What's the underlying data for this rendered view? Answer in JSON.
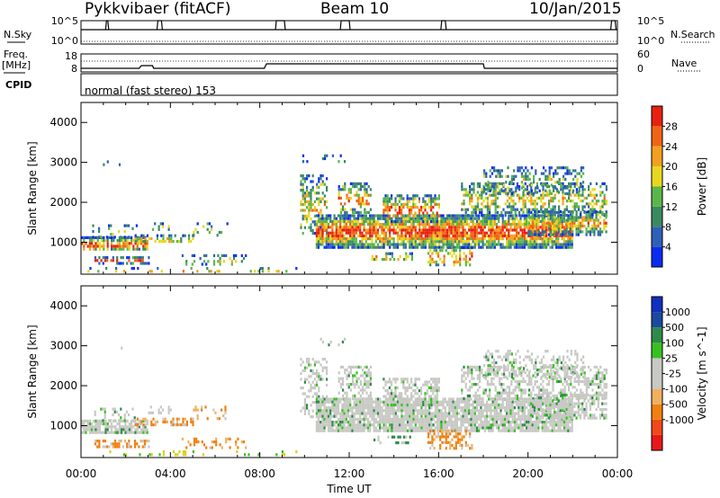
{
  "header": {
    "title": "Pykkvibaer (fitACF)",
    "beam": "Beam 10",
    "date": "10/Jan/2015"
  },
  "top_panel": {
    "left_label": "N.Sky",
    "right_label": "N.Search",
    "left_ticks": [
      "10^5",
      "10^0"
    ],
    "right_ticks": [
      "10^5",
      "10^0"
    ]
  },
  "freq_panel": {
    "left_label_1": "Freq.",
    "left_label_2": "[MHz]",
    "right_label": "Nave",
    "left_ticks": [
      "18",
      "8"
    ],
    "right_ticks": [
      "60",
      "0"
    ]
  },
  "cpid": {
    "label": "CPID",
    "text": "normal (fast stereo) 153"
  },
  "colors": {
    "power_scale": [
      "#0a2cf0",
      "#2f60b8",
      "#3a8a60",
      "#5ab64a",
      "#e6d81e",
      "#f2a020",
      "#f06414",
      "#e82010"
    ],
    "velocity_scale": [
      "#e81818",
      "#f0481a",
      "#f08010",
      "#f0b060",
      "#c8c8c4",
      "#c8c8c4",
      "#38c020",
      "#2e8a4a",
      "#1a4aa0",
      "#1030c0"
    ]
  },
  "chart_data": [
    {
      "type": "heatmap",
      "title": "",
      "xlabel": "",
      "ylabel": "Slant Range [km]",
      "xlim": [
        "00:00",
        "24:00"
      ],
      "ylim": [
        200,
        4500
      ],
      "x_ticks": [
        "00:00",
        "04:00",
        "08:00",
        "12:00",
        "16:00",
        "20:00",
        "00:00"
      ],
      "y_ticks": [
        1000,
        2000,
        3000,
        4000
      ],
      "colorbar": {
        "label": "Power [dB]",
        "ticks": [
          4,
          8,
          12,
          16,
          20,
          24,
          28
        ],
        "range": [
          0,
          32
        ]
      }
    },
    {
      "type": "heatmap",
      "title": "",
      "xlabel": "Time UT",
      "ylabel": "Slant Range [km]",
      "xlim": [
        "00:00",
        "24:00"
      ],
      "ylim": [
        200,
        4500
      ],
      "x_ticks": [
        "00:00",
        "04:00",
        "08:00",
        "12:00",
        "16:00",
        "20:00",
        "00:00"
      ],
      "y_ticks": [
        1000,
        2000,
        3000,
        4000
      ],
      "colorbar": {
        "label": "Velocity [m s^-1]",
        "ticks": [
          1000,
          500,
          100,
          25,
          -25,
          -100,
          -500,
          -1000
        ]
      }
    }
  ]
}
